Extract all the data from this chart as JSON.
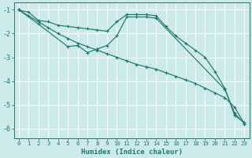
{
  "xlabel": "Humidex (Indice chaleur)",
  "background_color": "#cceaea",
  "grid_color": "#ffffff",
  "line_color": "#1e7b6a",
  "xlim": [
    -0.5,
    23.5
  ],
  "ylim": [
    -6.4,
    -0.7
  ],
  "yticks": [
    -6,
    -5,
    -4,
    -3,
    -2,
    -1
  ],
  "xticks": [
    0,
    1,
    2,
    3,
    4,
    5,
    6,
    7,
    8,
    9,
    10,
    11,
    12,
    13,
    14,
    15,
    16,
    17,
    18,
    19,
    20,
    21,
    22,
    23
  ],
  "series": [
    {
      "x": [
        0,
        1,
        2,
        3,
        4,
        5,
        6,
        7,
        8,
        9,
        10,
        11,
        12,
        13,
        14,
        15,
        16,
        17,
        18,
        19,
        20,
        21,
        22,
        23
      ],
      "y": [
        -1.0,
        -1.1,
        -1.45,
        -1.5,
        -1.65,
        -1.7,
        -1.75,
        -1.8,
        -1.85,
        -1.9,
        -1.5,
        -1.2,
        -1.2,
        -1.2,
        -1.25,
        -1.7,
        -2.1,
        -2.4,
        -2.7,
        -3.0,
        -3.6,
        -4.3,
        -5.45,
        -5.75
      ]
    },
    {
      "x": [
        0,
        1,
        2,
        3,
        4,
        5,
        6,
        7,
        8,
        9,
        10,
        11,
        12,
        13,
        14,
        15,
        16,
        17,
        18,
        19,
        20,
        21,
        22,
        23
      ],
      "y": [
        -1.0,
        -1.25,
        -1.5,
        -1.75,
        -2.0,
        -2.2,
        -2.4,
        -2.55,
        -2.7,
        -2.85,
        -3.0,
        -3.15,
        -3.3,
        -3.4,
        -3.5,
        -3.65,
        -3.8,
        -3.95,
        -4.1,
        -4.3,
        -4.5,
        -4.7,
        -5.1,
        -5.8
      ]
    },
    {
      "x": [
        0,
        2,
        5,
        6,
        7,
        8,
        9,
        10,
        11,
        12,
        13,
        14,
        21,
        22,
        23
      ],
      "y": [
        -1.0,
        -1.6,
        -2.55,
        -2.5,
        -2.8,
        -2.65,
        -2.5,
        -2.1,
        -1.3,
        -1.3,
        -1.3,
        -1.35,
        -4.35,
        -5.35,
        -5.8
      ]
    }
  ]
}
